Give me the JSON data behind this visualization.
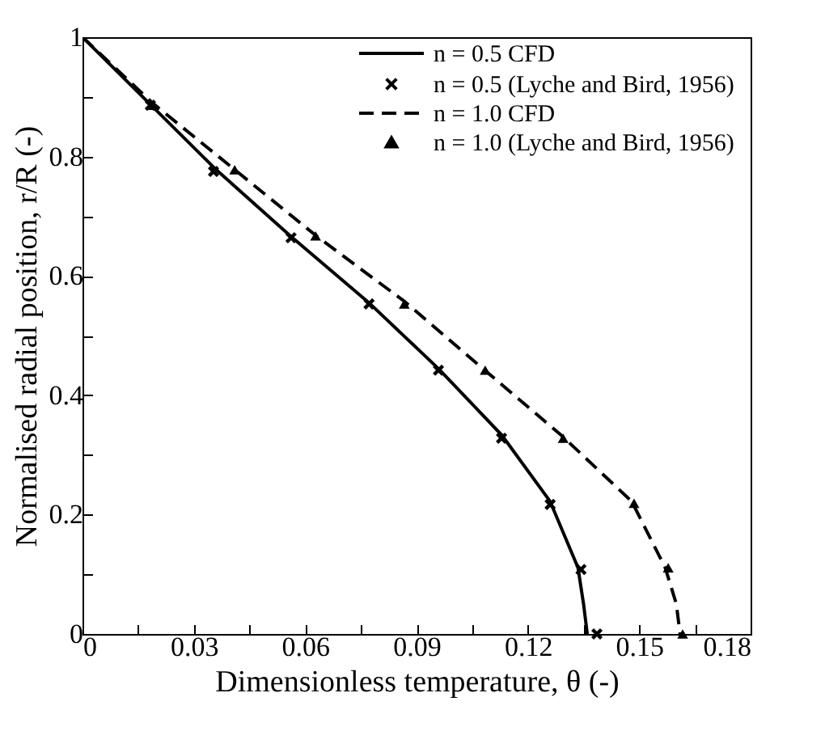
{
  "chart_data": {
    "type": "line",
    "xlabel": "Dimensionless temperature, θ  (-)",
    "ylabel": "Normalised radial position, r/R  (-)",
    "xlim": [
      0,
      0.18
    ],
    "ylim": [
      0,
      1
    ],
    "xticks": [
      0,
      {
        "value": 0.015,
        "label": null
      },
      0.03,
      {
        "value": 0.045,
        "label": null
      },
      0.06,
      {
        "value": 0.075,
        "label": null
      },
      0.09,
      {
        "value": 0.105,
        "label": null
      },
      0.12,
      {
        "value": 0.135,
        "label": null
      },
      0.15,
      {
        "value": 0.165,
        "label": null
      },
      0.18
    ],
    "yticks": [
      0,
      {
        "value": 0.1,
        "label": null
      },
      0.2,
      {
        "value": 0.3,
        "label": null
      },
      0.4,
      {
        "value": 0.5,
        "label": null
      },
      0.6,
      {
        "value": 0.7,
        "label": null
      },
      0.8,
      {
        "value": 0.9,
        "label": null
      },
      1
    ],
    "grid": false,
    "legend": "top right",
    "series": [
      {
        "name": "n = 0.5 CFD",
        "type": "line",
        "line_style": "solid",
        "color": "#000000",
        "x": [
          0,
          0.018,
          0.036,
          0.056,
          0.077,
          0.096,
          0.113,
          0.126,
          0.1335,
          0.135,
          0.136
        ],
        "values": [
          1,
          0.889,
          0.778,
          0.667,
          0.556,
          0.444,
          0.333,
          0.222,
          0.111,
          0.05,
          0
        ]
      },
      {
        "name": "n = 0.5 (Lyche and Bird, 1956)",
        "type": "scatter",
        "marker": "cross",
        "color": "#000000",
        "x": [
          0.0183,
          0.0353,
          0.0562,
          0.0772,
          0.0959,
          0.1129,
          0.126,
          0.1343,
          0.1386
        ],
        "values": [
          0.886,
          0.775,
          0.664,
          0.553,
          0.442,
          0.328,
          0.217,
          0.108,
          0
        ]
      },
      {
        "name": "n = 1.0 CFD",
        "type": "line",
        "line_style": "dashed",
        "color": "#000000",
        "x": [
          0,
          0.019,
          0.041,
          0.063,
          0.087,
          0.108,
          0.129,
          0.148,
          0.157,
          0.16,
          0.161
        ],
        "values": [
          1,
          0.889,
          0.778,
          0.667,
          0.556,
          0.444,
          0.333,
          0.222,
          0.111,
          0.05,
          0
        ]
      },
      {
        "name": "n = 1.0 (Lyche and Bird, 1956)",
        "type": "scatter",
        "marker": "triangle",
        "color": "#000000",
        "x": [
          0.0192,
          0.041,
          0.0628,
          0.0867,
          0.1085,
          0.1295,
          0.1486,
          0.1578,
          0.1617
        ],
        "values": [
          0.886,
          0.778,
          0.667,
          0.553,
          0.442,
          0.328,
          0.219,
          0.111,
          0
        ]
      }
    ]
  }
}
